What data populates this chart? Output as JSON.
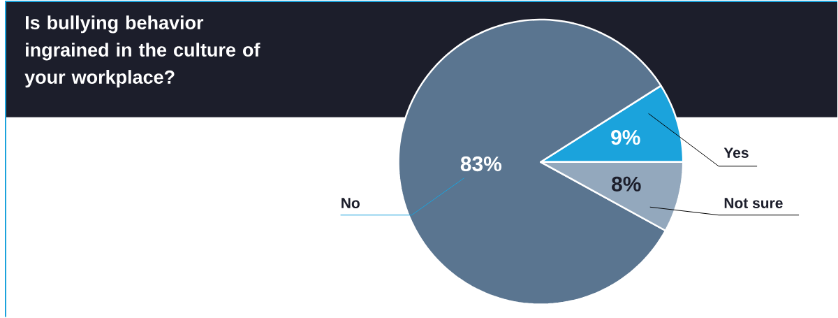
{
  "chart_data": {
    "type": "pie",
    "title": "Is bullying behavior ingrained in the culture of your workplace?",
    "categories": [
      "Yes",
      "No",
      "Not sure"
    ],
    "values": [
      9,
      83,
      8
    ],
    "colors": [
      "#1ba3dc",
      "#5a7590",
      "#93a8bd"
    ],
    "value_labels": [
      "9%",
      "83%",
      "8%"
    ]
  }
}
